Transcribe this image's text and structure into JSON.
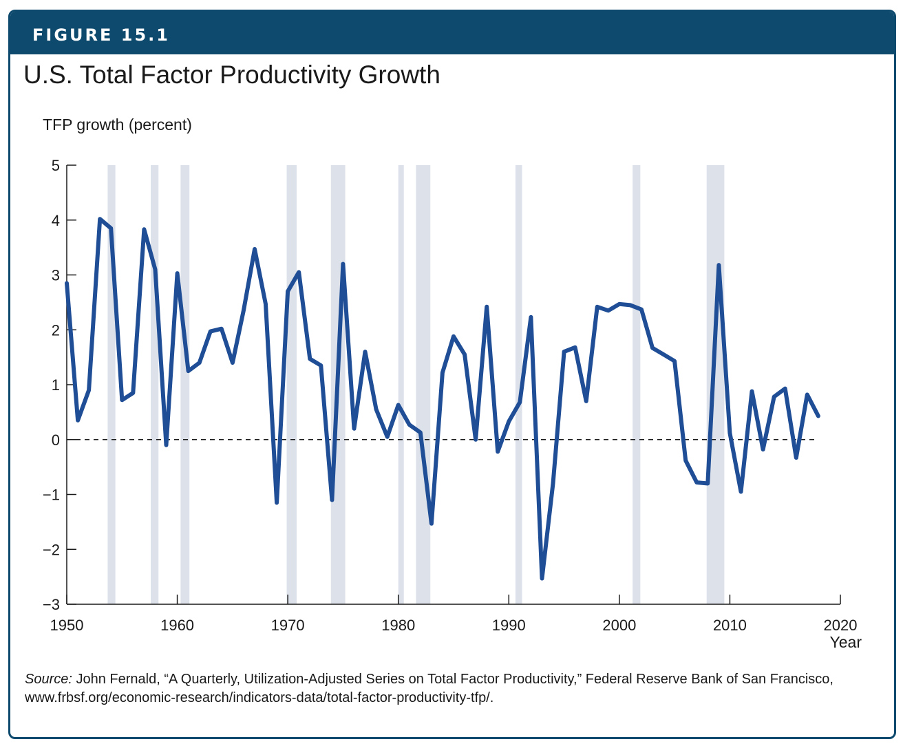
{
  "figure_label": "FIGURE 15.1",
  "colors": {
    "header": "#0e4a6e",
    "line": "#1f4e96",
    "recession": "#dde2ea"
  },
  "source": {
    "label": "Source:",
    "text": " John Fernald, “A Quarterly, Utilization-Adjusted Series on Total Factor Productivity,” Federal Reserve Bank of San Francisco, www.frbsf.org/economic-research/indicators-data/total-factor-productivity-tfp/."
  },
  "chart_data": {
    "type": "line",
    "title": "U.S. Total Factor Productivity Growth",
    "ylabel": "TFP growth (percent)",
    "xlabel": "Year",
    "xlim": [
      1950,
      2020
    ],
    "ylim": [
      -3,
      5
    ],
    "x_ticks": [
      1950,
      1960,
      1970,
      1980,
      1990,
      2000,
      2010,
      2020
    ],
    "y_ticks": [
      5,
      4,
      3,
      2,
      1,
      0,
      -1,
      -2,
      -3
    ],
    "y_tick_labels": [
      "5",
      "4",
      "3",
      "2",
      "1",
      "0",
      "−1",
      "−2",
      "−3"
    ],
    "reference_line": {
      "y": 0,
      "style": "dashed"
    },
    "shaded_periods": [
      [
        1953.7,
        1954.4
      ],
      [
        1957.6,
        1958.3
      ],
      [
        1960.3,
        1961.1
      ],
      [
        1969.9,
        1970.8
      ],
      [
        1973.9,
        1975.2
      ],
      [
        1980.0,
        1980.5
      ],
      [
        1981.6,
        1982.9
      ],
      [
        1990.6,
        1991.2
      ],
      [
        2001.2,
        2001.9
      ],
      [
        2007.9,
        2009.5
      ]
    ],
    "series": [
      {
        "x": [
          1950,
          1951,
          1952,
          1953,
          1954,
          1955,
          1956,
          1957,
          1958,
          1959,
          1960,
          1961,
          1962,
          1963,
          1964,
          1965,
          1966,
          1967,
          1968,
          1969,
          1970,
          1971,
          1972,
          1973,
          1974,
          1975,
          1976,
          1977,
          1978,
          1979,
          1980,
          1981,
          1982,
          1983,
          1984,
          1985,
          1986,
          1987,
          1988,
          1989,
          1990,
          1991,
          1992,
          1993,
          1994,
          1995,
          1996,
          1997,
          1998,
          1999,
          2000,
          2001,
          2002,
          2003,
          2004,
          2005,
          2006,
          2007,
          2008,
          2009,
          2010,
          2011,
          2012,
          2013,
          2014,
          2015,
          2016,
          2017,
          2018
        ],
        "y": [
          2.85,
          0.35,
          0.9,
          4.02,
          3.85,
          0.72,
          0.85,
          3.83,
          3.1,
          -0.1,
          3.03,
          1.25,
          1.4,
          1.97,
          2.02,
          1.4,
          2.35,
          3.47,
          2.47,
          -1.15,
          2.7,
          3.05,
          1.47,
          1.35,
          -1.1,
          3.2,
          0.2,
          1.6,
          0.55,
          0.05,
          0.63,
          0.27,
          0.13,
          -1.53,
          1.22,
          1.88,
          1.55,
          0.0,
          2.42,
          -0.22,
          0.33,
          0.68,
          2.23,
          -2.53,
          -0.8,
          1.6,
          1.68,
          0.7,
          2.42,
          2.35,
          2.47,
          2.45,
          2.37,
          1.67,
          1.55,
          1.43,
          -0.38,
          -0.78,
          -0.8,
          3.18,
          0.12,
          -0.95,
          0.88,
          -0.18,
          0.78,
          0.93,
          -0.33,
          0.82,
          0.43
        ]
      }
    ]
  }
}
